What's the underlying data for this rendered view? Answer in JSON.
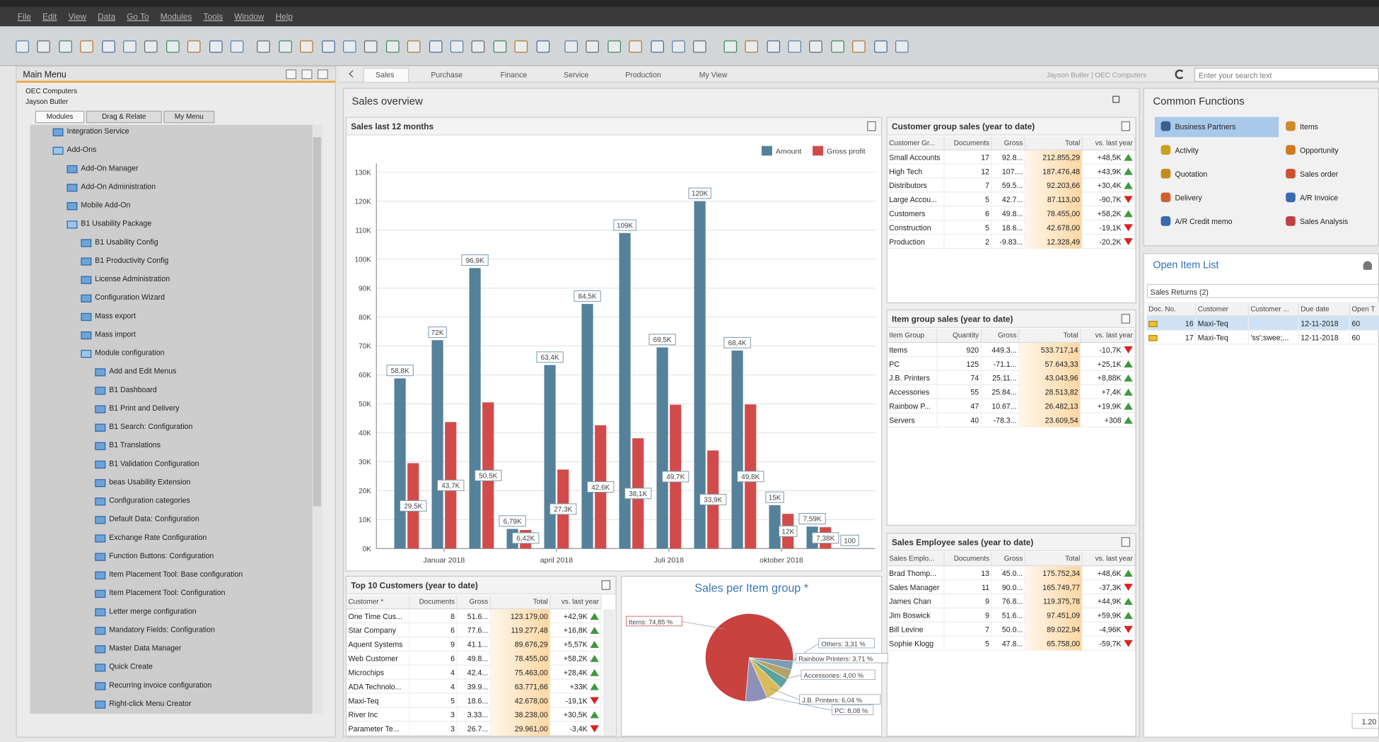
{
  "menu_bar": [
    "File",
    "Edit",
    "View",
    "Data",
    "Go To",
    "Modules",
    "Tools",
    "Window",
    "Help"
  ],
  "main_menu": {
    "title": "Main Menu",
    "company": "OEC Computers",
    "user": "Jayson Butler",
    "tabs": [
      "Modules",
      "Drag & Relate",
      "My Menu"
    ],
    "items": [
      {
        "label": "Integration Service",
        "level": 1,
        "kind": "item"
      },
      {
        "label": "Add-Ons",
        "level": 1,
        "kind": "folder"
      },
      {
        "label": "Add-On Manager",
        "level": 2,
        "kind": "item"
      },
      {
        "label": "Add-On Administration",
        "level": 2,
        "kind": "item"
      },
      {
        "label": "Mobile Add-On",
        "level": 2,
        "kind": "item"
      },
      {
        "label": "B1 Usability Package",
        "level": 2,
        "kind": "folder"
      },
      {
        "label": "B1 Usability Config",
        "level": 3,
        "kind": "item"
      },
      {
        "label": "B1 Productivity Config",
        "level": 3,
        "kind": "item"
      },
      {
        "label": "License Administration",
        "level": 3,
        "kind": "item"
      },
      {
        "label": "Configuration Wizard",
        "level": 3,
        "kind": "item"
      },
      {
        "label": "Mass export",
        "level": 3,
        "kind": "item"
      },
      {
        "label": "Mass import",
        "level": 3,
        "kind": "item"
      },
      {
        "label": "Module configuration",
        "level": 3,
        "kind": "folder"
      },
      {
        "label": "Add and Edit Menus",
        "level": 4,
        "kind": "item"
      },
      {
        "label": "B1 Dashboard",
        "level": 4,
        "kind": "item"
      },
      {
        "label": "B1 Print and Delivery",
        "level": 4,
        "kind": "item"
      },
      {
        "label": "B1 Search: Configuration",
        "level": 4,
        "kind": "item"
      },
      {
        "label": "B1 Translations",
        "level": 4,
        "kind": "item"
      },
      {
        "label": "B1 Validation Configuration",
        "level": 4,
        "kind": "item"
      },
      {
        "label": "beas Usability Extension",
        "level": 4,
        "kind": "item"
      },
      {
        "label": "Configuration categories",
        "level": 4,
        "kind": "item"
      },
      {
        "label": "Default Data: Configuration",
        "level": 4,
        "kind": "item"
      },
      {
        "label": "Exchange Rate Configuration",
        "level": 4,
        "kind": "item"
      },
      {
        "label": "Function Buttons: Configuration",
        "level": 4,
        "kind": "item"
      },
      {
        "label": "Item Placement Tool: Base configuration",
        "level": 4,
        "kind": "item"
      },
      {
        "label": "Item Placement Tool: Configuration",
        "level": 4,
        "kind": "item"
      },
      {
        "label": "Letter merge configuration",
        "level": 4,
        "kind": "item"
      },
      {
        "label": "Mandatory Fields: Configuration",
        "level": 4,
        "kind": "item"
      },
      {
        "label": "Master Data Manager",
        "level": 4,
        "kind": "item"
      },
      {
        "label": "Quick Create",
        "level": 4,
        "kind": "item"
      },
      {
        "label": "Recurring invoice configuration",
        "level": 4,
        "kind": "item"
      },
      {
        "label": "Right-click Menu Creator",
        "level": 4,
        "kind": "item"
      }
    ]
  },
  "cockpit": {
    "tabs": [
      "Sales",
      "Purchase",
      "Finance",
      "Service",
      "Production",
      "My View"
    ],
    "user_info": "Jayson Butler | OEC Computers",
    "search_placeholder": "Enter your search text"
  },
  "sales_overview": {
    "title": "Sales overview"
  },
  "chart_data": [
    {
      "type": "bar",
      "title": "Sales last 12 months",
      "categories": [
        null,
        "Januar 2018",
        null,
        null,
        "april 2018",
        null,
        null,
        "Juli 2018",
        null,
        null,
        "oktober 2018",
        null,
        null
      ],
      "series": [
        {
          "name": "Amount",
          "color": "#55819a",
          "values": [
            58800,
            72000,
            96900,
            6790,
            63400,
            84500,
            109000,
            69500,
            120000,
            68400,
            15000,
            7590,
            100
          ],
          "value_labels": [
            "58,8K",
            "72K",
            "96,9K",
            "6,79K",
            "63,4K",
            "84,5K",
            "109K",
            "69,5K",
            "120K",
            "68,4K",
            "15K",
            "7,59K",
            "100"
          ]
        },
        {
          "name": "Gross profit",
          "color": "#d24b4b",
          "values": [
            29500,
            43700,
            50500,
            6420,
            27300,
            42600,
            38100,
            49700,
            33900,
            49800,
            12000,
            7380,
            null
          ],
          "value_labels": [
            "29,5K",
            "43,7K",
            "50,5K",
            "6,42K",
            "27,3K",
            "42,6K",
            "38,1K",
            "49,7K",
            "33,9K",
            "49,8K",
            "12K",
            "7,38K",
            null
          ]
        }
      ],
      "ylim": [
        0,
        133000
      ],
      "yticks": [
        {
          "value": 0,
          "label": "0K"
        },
        {
          "value": 10000,
          "label": "10K"
        },
        {
          "value": 20000,
          "label": "20K"
        },
        {
          "value": 30000,
          "label": "30K"
        },
        {
          "value": 40000,
          "label": "40K"
        },
        {
          "value": 50000,
          "label": "50K"
        },
        {
          "value": 60000,
          "label": "60K"
        },
        {
          "value": 70000,
          "label": "70K"
        },
        {
          "value": 80000,
          "label": "80K"
        },
        {
          "value": 90000,
          "label": "90K"
        },
        {
          "value": 100000,
          "label": "100K"
        },
        {
          "value": 110000,
          "label": "110K"
        },
        {
          "value": 120000,
          "label": "120K"
        },
        {
          "value": 130000,
          "label": "130K"
        }
      ],
      "grid": true,
      "legend": "top-right"
    },
    {
      "type": "pie",
      "title": "Sales per Item group *",
      "values": [
        74.85,
        3.31,
        3.71,
        4,
        6.04,
        8.08
      ],
      "value_labels": [
        "Items: 74,85 %",
        "Others: 3,31 %",
        "Rainbow Printers: 3,71 %",
        "Accessories: 4,00 %",
        "J.B. Printers: 6,04 %",
        "PC: 8,08 %"
      ],
      "colors": [
        "#c8423e",
        "#7d9cb3",
        "#b3a36a",
        "#5aa39d",
        "#d9bb5c",
        "#8d90b8"
      ]
    }
  ],
  "widgets": {
    "customer_group": {
      "title": "Customer group sales (year to date)",
      "columns": [
        "Customer Gr...",
        "Documents",
        "Gross",
        "Total",
        "vs. last year"
      ],
      "rows": [
        [
          "Small Accounts",
          "17",
          "92.8...",
          "212.855,29",
          "+48,5K"
        ],
        [
          "High Tech",
          "12",
          "107....",
          "187.476,48",
          "+43,9K"
        ],
        [
          "Distributors",
          "7",
          "59.5...",
          "92.203,66",
          "+30,4K"
        ],
        [
          "Large Accou...",
          "5",
          "42.7...",
          "87.113,00",
          "-90,7K"
        ],
        [
          "Customers",
          "6",
          "49.8...",
          "78.455,00",
          "+58,2K"
        ],
        [
          "Construction",
          "5",
          "18.6...",
          "42.678,00",
          "-19,1K"
        ],
        [
          "Production",
          "2",
          "-9.83...",
          "12.328,49",
          "-20,2K"
        ]
      ]
    },
    "item_group": {
      "title": "Item group sales (year to date)",
      "columns": [
        "Item Group",
        "Quantity",
        "Gross",
        "Total",
        "vs. last year"
      ],
      "rows": [
        [
          "Items",
          "920",
          "449.3...",
          "533.717,14",
          "-10,7K"
        ],
        [
          "PC",
          "125",
          "-71.1...",
          "57.643,33",
          "+25,1K"
        ],
        [
          "J.B. Printers",
          "74",
          "25.11...",
          "43.043,96",
          "+8,88K"
        ],
        [
          "Accessories",
          "55",
          "25.84...",
          "28.513,82",
          "+7,4K"
        ],
        [
          "Rainbow P...",
          "47",
          "10.67...",
          "26.482,13",
          "+19,9K"
        ],
        [
          "Servers",
          "40",
          "-78.3...",
          "23.609,54",
          "+308"
        ]
      ]
    },
    "sales_employee": {
      "title": "Sales Employee sales (year to date)",
      "columns": [
        "Sales Emplo...",
        "Documents",
        "Gross",
        "Total",
        "vs. last year"
      ],
      "rows": [
        [
          "Brad Thomp...",
          "13",
          "45.0...",
          "175.752,34",
          "+48,6K"
        ],
        [
          "Sales Manager",
          "11",
          "90.0...",
          "165.749,77",
          "-37,3K"
        ],
        [
          "James Chan",
          "9",
          "76.8...",
          "119.375,78",
          "+44,9K"
        ],
        [
          "Jim Boswick",
          "9",
          "51.6...",
          "97.451,09",
          "+59,9K"
        ],
        [
          "Bill Levine",
          "7",
          "50.0...",
          "89.022,94",
          "-4,96K"
        ],
        [
          "Sophie Klogg",
          "5",
          "47.8...",
          "65.758,00",
          "-59,7K"
        ]
      ]
    },
    "top_customers": {
      "title": "Top 10 Customers (year to date)",
      "columns": [
        "Customer *",
        "Documents",
        "Gross",
        "Total",
        "vs. last year"
      ],
      "rows": [
        [
          "One Time Cus...",
          "8",
          "51.6...",
          "123.179,00",
          "+42,9K"
        ],
        [
          "Star Company",
          "6",
          "77.6...",
          "119.277,48",
          "+16,8K"
        ],
        [
          "Aquent Systems",
          "9",
          "41.1...",
          "89.676,29",
          "+5,57K"
        ],
        [
          "Web Customer",
          "6",
          "49.8...",
          "78.455,00",
          "+58,2K"
        ],
        [
          "Microchips",
          "4",
          "42.4...",
          "75.463,00",
          "+28,4K"
        ],
        [
          "ADA Technolo...",
          "4",
          "39.9...",
          "63.771,66",
          "+33K"
        ],
        [
          "Maxi-Teq",
          "5",
          "18.6...",
          "42.678,00",
          "-19,1K"
        ],
        [
          "River Inc",
          "3",
          "3.33...",
          "38.238,00",
          "+30,5K"
        ],
        [
          "Parameter Te...",
          "3",
          "26.7...",
          "29.961,00",
          "-3,4K"
        ]
      ]
    }
  },
  "common_functions": {
    "title": "Common Functions",
    "items": [
      "Business Partners",
      "Items",
      "Activity",
      "Opportunity",
      "Quotation",
      "Sales order",
      "Delivery",
      "A/R Invoice",
      "A/R Credit memo",
      "Sales Analysis"
    ]
  },
  "open_items": {
    "title": "Open Item List",
    "filter": "Sales Returns (2)",
    "columns": [
      "Doc. No.",
      "Customer",
      "Customer ...",
      "Due date",
      "Open T"
    ],
    "rows": [
      [
        "16",
        "Maxi-Teq",
        null,
        "12-11-2018",
        "60"
      ],
      [
        "17",
        "Maxi-Teq",
        "'ss';swee;...",
        "12-11-2018",
        "60"
      ]
    ],
    "footer": "1.20"
  }
}
